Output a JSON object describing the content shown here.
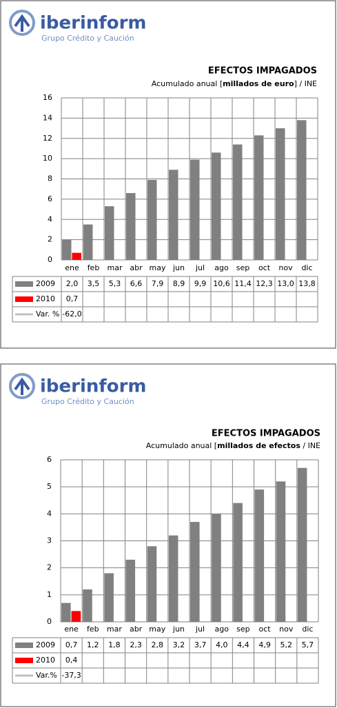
{
  "brand": {
    "name": "iberinform",
    "tagline": "Grupo Crédito y Caución"
  },
  "chart_data": [
    {
      "type": "bar",
      "title": "EFECTOS IMPAGADOS",
      "subtitle": {
        "before": "Acumulado anual [",
        "bold": "millados de euro",
        "after": "] / INE"
      },
      "categories": [
        "ene",
        "feb",
        "mar",
        "abr",
        "may",
        "jun",
        "jul",
        "ago",
        "sep",
        "oct",
        "nov",
        "dic"
      ],
      "series": [
        {
          "name": "2009",
          "color": "#808080",
          "legend_symbol": "box",
          "values": [
            2.0,
            3.5,
            5.3,
            6.6,
            7.9,
            8.9,
            9.9,
            10.6,
            11.4,
            12.3,
            13.0,
            13.8
          ],
          "value_labels": [
            "2,0",
            "3,5",
            "5,3",
            "6,6",
            "7,9",
            "8,9",
            "9,9",
            "10,6",
            "11,4",
            "12,3",
            "13,0",
            "13,8"
          ]
        },
        {
          "name": "2010",
          "color": "#ff0000",
          "legend_symbol": "box",
          "values": [
            0.7,
            null,
            null,
            null,
            null,
            null,
            null,
            null,
            null,
            null,
            null,
            null
          ],
          "value_labels": [
            "0,7",
            null,
            null,
            null,
            null,
            null,
            null,
            null,
            null,
            null,
            null,
            null
          ]
        },
        {
          "name": "Var. %",
          "color": "#c0c0c0",
          "legend_symbol": "line",
          "values": [
            -62.0,
            null,
            null,
            null,
            null,
            null,
            null,
            null,
            null,
            null,
            null,
            null
          ],
          "value_labels": [
            "-62,0",
            null,
            null,
            null,
            null,
            null,
            null,
            null,
            null,
            null,
            null,
            null
          ]
        }
      ],
      "ylim": [
        0,
        16
      ],
      "yticks": [
        0,
        2,
        4,
        6,
        8,
        10,
        12,
        14,
        16
      ],
      "grid": true
    },
    {
      "type": "bar",
      "title": "EFECTOS IMPAGADOS",
      "subtitle": {
        "before": "Acumulado anual [",
        "bold": "millados de efectos",
        "after": " / INE"
      },
      "categories": [
        "ene",
        "feb",
        "mar",
        "abr",
        "may",
        "jun",
        "jul",
        "ago",
        "sep",
        "oct",
        "nov",
        "dic"
      ],
      "series": [
        {
          "name": "2009",
          "color": "#808080",
          "legend_symbol": "box",
          "values": [
            0.7,
            1.2,
            1.8,
            2.3,
            2.8,
            3.2,
            3.7,
            4.0,
            4.4,
            4.9,
            5.2,
            5.7
          ],
          "value_labels": [
            "0,7",
            "1,2",
            "1,8",
            "2,3",
            "2,8",
            "3,2",
            "3,7",
            "4,0",
            "4,4",
            "4,9",
            "5,2",
            "5,7"
          ]
        },
        {
          "name": "2010",
          "color": "#ff0000",
          "legend_symbol": "box",
          "values": [
            0.4,
            null,
            null,
            null,
            null,
            null,
            null,
            null,
            null,
            null,
            null,
            null
          ],
          "value_labels": [
            "0,4",
            null,
            null,
            null,
            null,
            null,
            null,
            null,
            null,
            null,
            null,
            null
          ]
        },
        {
          "name": "Var.%",
          "color": "#c0c0c0",
          "legend_symbol": "line",
          "values": [
            -37.3,
            null,
            null,
            null,
            null,
            null,
            null,
            null,
            null,
            null,
            null,
            null
          ],
          "value_labels": [
            "-37,3",
            null,
            null,
            null,
            null,
            null,
            null,
            null,
            null,
            null,
            null,
            null
          ]
        }
      ],
      "ylim": [
        0,
        6
      ],
      "yticks": [
        0,
        1,
        2,
        3,
        4,
        5,
        6
      ],
      "grid": true
    }
  ]
}
